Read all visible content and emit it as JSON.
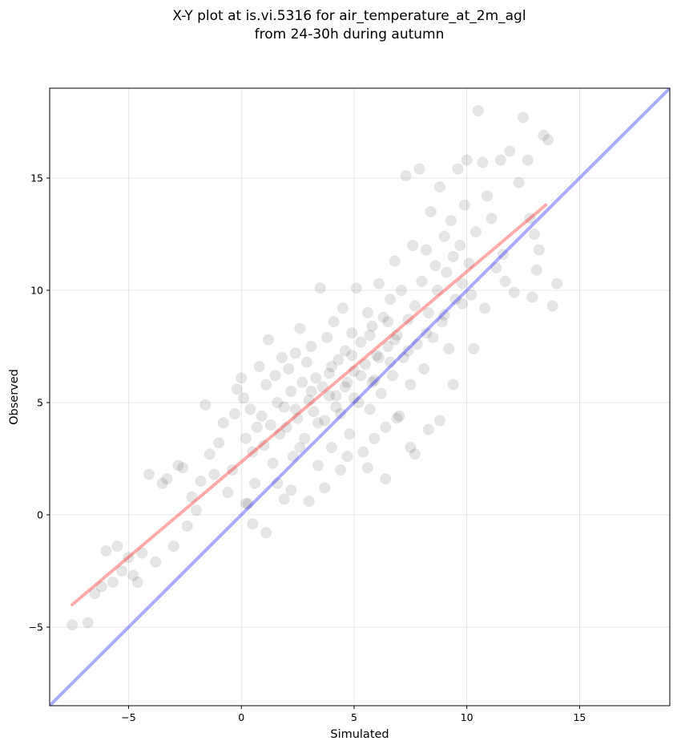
{
  "chart_data": {
    "type": "scatter",
    "title_lines": [
      "X-Y plot at is.vi.5316 for air_temperature_at_2m_agl",
      "from 24-30h during autumn"
    ],
    "xlabel": "Simulated",
    "ylabel": "Observed",
    "xlim": [
      -8.5,
      19
    ],
    "ylim": [
      -8.5,
      19
    ],
    "xticks": [
      -5,
      0,
      5,
      10,
      15
    ],
    "yticks": [
      -5,
      0,
      5,
      10,
      15
    ],
    "xtick_labels": [
      "−5",
      "0",
      "5",
      "10",
      "15"
    ],
    "ytick_labels": [
      "−5",
      "0",
      "5",
      "10",
      "15"
    ],
    "grid": true,
    "point_color": "#000000",
    "point_opacity": 0.1,
    "identity_line": {
      "x": [
        -8.5,
        19
      ],
      "y": [
        -8.5,
        19
      ],
      "color": "#0000ff",
      "opacity": 0.33
    },
    "fit_line": {
      "x": [
        -7.5,
        13.5
      ],
      "y": [
        -4.0,
        13.8
      ],
      "color": "#ff0000",
      "opacity": 0.33
    },
    "points": [
      [
        -7.5,
        -4.9
      ],
      [
        -6.8,
        -4.8
      ],
      [
        -6.5,
        -3.5
      ],
      [
        -6.2,
        -3.2
      ],
      [
        -6.0,
        -1.6
      ],
      [
        -5.7,
        -3.0
      ],
      [
        -5.5,
        -1.4
      ],
      [
        -5.3,
        -2.5
      ],
      [
        -5.0,
        -1.9
      ],
      [
        -4.8,
        -2.7
      ],
      [
        -4.6,
        -3.0
      ],
      [
        -4.4,
        -1.7
      ],
      [
        -4.1,
        1.8
      ],
      [
        -3.8,
        -2.1
      ],
      [
        -3.5,
        1.4
      ],
      [
        -3.3,
        1.6
      ],
      [
        -3.0,
        -1.4
      ],
      [
        -2.8,
        2.2
      ],
      [
        -2.6,
        2.1
      ],
      [
        -2.4,
        -0.5
      ],
      [
        -2.2,
        0.8
      ],
      [
        -2.0,
        0.2
      ],
      [
        -1.8,
        1.5
      ],
      [
        -1.6,
        4.9
      ],
      [
        -1.4,
        2.7
      ],
      [
        -1.2,
        1.8
      ],
      [
        -1.0,
        3.2
      ],
      [
        -0.8,
        4.1
      ],
      [
        -0.6,
        1.0
      ],
      [
        -0.4,
        2.0
      ],
      [
        -0.3,
        4.5
      ],
      [
        -0.2,
        5.6
      ],
      [
        0.0,
        6.1
      ],
      [
        0.1,
        5.2
      ],
      [
        0.2,
        3.4
      ],
      [
        0.3,
        0.5
      ],
      [
        0.4,
        4.7
      ],
      [
        0.5,
        2.8
      ],
      [
        0.6,
        1.4
      ],
      [
        0.7,
        3.9
      ],
      [
        0.8,
        6.6
      ],
      [
        0.9,
        4.4
      ],
      [
        1.0,
        3.1
      ],
      [
        1.1,
        5.8
      ],
      [
        1.2,
        7.8
      ],
      [
        1.3,
        4.0
      ],
      [
        1.4,
        2.3
      ],
      [
        1.5,
        6.2
      ],
      [
        1.6,
        5.0
      ],
      [
        1.7,
        3.6
      ],
      [
        1.8,
        7.0
      ],
      [
        1.9,
        4.8
      ],
      [
        2.0,
        3.9
      ],
      [
        2.1,
        6.5
      ],
      [
        2.2,
        5.5
      ],
      [
        2.3,
        2.6
      ],
      [
        2.4,
        7.2
      ],
      [
        2.5,
        4.3
      ],
      [
        2.6,
        8.3
      ],
      [
        2.7,
        5.9
      ],
      [
        2.8,
        3.4
      ],
      [
        2.9,
        6.8
      ],
      [
        3.0,
        5.1
      ],
      [
        3.1,
        7.5
      ],
      [
        3.2,
        4.6
      ],
      [
        3.3,
        6.1
      ],
      [
        3.4,
        2.2
      ],
      [
        3.5,
        10.1
      ],
      [
        3.6,
        5.7
      ],
      [
        3.7,
        4.2
      ],
      [
        3.8,
        7.9
      ],
      [
        3.9,
        6.3
      ],
      [
        4.0,
        3.0
      ],
      [
        4.1,
        8.6
      ],
      [
        4.2,
        5.3
      ],
      [
        4.3,
        6.9
      ],
      [
        4.4,
        4.5
      ],
      [
        4.5,
        9.2
      ],
      [
        4.6,
        7.3
      ],
      [
        4.7,
        5.9
      ],
      [
        4.8,
        3.6
      ],
      [
        4.9,
        8.1
      ],
      [
        5.0,
        6.4
      ],
      [
        5.1,
        10.1
      ],
      [
        5.2,
        5.0
      ],
      [
        5.3,
        7.7
      ],
      [
        5.4,
        2.8
      ],
      [
        5.5,
        6.7
      ],
      [
        5.6,
        9.0
      ],
      [
        5.7,
        4.7
      ],
      [
        5.8,
        8.4
      ],
      [
        5.9,
        6.0
      ],
      [
        6.0,
        7.1
      ],
      [
        6.1,
        10.3
      ],
      [
        6.2,
        5.4
      ],
      [
        6.3,
        8.8
      ],
      [
        6.4,
        3.9
      ],
      [
        6.5,
        7.5
      ],
      [
        6.6,
        9.6
      ],
      [
        6.7,
        6.2
      ],
      [
        6.8,
        11.3
      ],
      [
        6.9,
        8.0
      ],
      [
        7.0,
        4.4
      ],
      [
        7.1,
        10.0
      ],
      [
        7.2,
        7.0
      ],
      [
        7.3,
        15.1
      ],
      [
        7.4,
        8.7
      ],
      [
        7.5,
        5.8
      ],
      [
        7.6,
        12.0
      ],
      [
        7.7,
        9.3
      ],
      [
        7.8,
        7.6
      ],
      [
        7.9,
        15.4
      ],
      [
        8.0,
        10.4
      ],
      [
        8.1,
        6.5
      ],
      [
        8.2,
        11.8
      ],
      [
        8.3,
        9.0
      ],
      [
        8.4,
        13.5
      ],
      [
        8.5,
        7.9
      ],
      [
        8.6,
        11.1
      ],
      [
        8.7,
        10.0
      ],
      [
        8.8,
        14.6
      ],
      [
        8.9,
        8.6
      ],
      [
        9.0,
        12.4
      ],
      [
        9.1,
        10.8
      ],
      [
        9.2,
        7.4
      ],
      [
        9.3,
        13.1
      ],
      [
        9.4,
        11.5
      ],
      [
        9.5,
        9.6
      ],
      [
        9.6,
        15.4
      ],
      [
        9.7,
        12.0
      ],
      [
        9.8,
        10.3
      ],
      [
        9.9,
        13.8
      ],
      [
        10.0,
        15.8
      ],
      [
        10.1,
        11.2
      ],
      [
        10.2,
        9.8
      ],
      [
        10.3,
        7.4
      ],
      [
        10.4,
        12.6
      ],
      [
        10.5,
        18.0
      ],
      [
        10.7,
        15.7
      ],
      [
        10.9,
        14.2
      ],
      [
        11.1,
        13.2
      ],
      [
        11.3,
        11.0
      ],
      [
        11.5,
        15.8
      ],
      [
        11.7,
        10.4
      ],
      [
        11.9,
        16.2
      ],
      [
        12.1,
        9.9
      ],
      [
        12.3,
        14.8
      ],
      [
        12.5,
        17.7
      ],
      [
        12.7,
        15.8
      ],
      [
        12.9,
        9.7
      ],
      [
        13.0,
        12.5
      ],
      [
        13.2,
        11.8
      ],
      [
        13.4,
        16.9
      ],
      [
        13.6,
        16.7
      ],
      [
        13.8,
        9.3
      ],
      [
        14.0,
        10.3
      ],
      [
        13.1,
        10.9
      ],
      [
        12.8,
        13.2
      ],
      [
        11.6,
        11.6
      ],
      [
        10.8,
        9.2
      ],
      [
        2.2,
        1.1
      ],
      [
        1.9,
        0.7
      ],
      [
        3.0,
        0.6
      ],
      [
        3.7,
        1.2
      ],
      [
        4.4,
        2.0
      ],
      [
        5.6,
        2.1
      ],
      [
        6.4,
        1.6
      ],
      [
        7.5,
        3.0
      ],
      [
        8.3,
        3.8
      ],
      [
        8.8,
        4.2
      ],
      [
        9.4,
        5.8
      ],
      [
        1.1,
        -0.8
      ],
      [
        0.5,
        -0.4
      ],
      [
        0.2,
        0.5
      ],
      [
        1.6,
        1.4
      ],
      [
        4.7,
        2.6
      ],
      [
        5.9,
        3.4
      ],
      [
        6.9,
        4.3
      ],
      [
        7.7,
        2.7
      ],
      [
        2.6,
        3.0
      ],
      [
        3.4,
        4.1
      ],
      [
        4.2,
        4.8
      ],
      [
        5.0,
        5.2
      ],
      [
        5.8,
        5.9
      ],
      [
        6.6,
        6.8
      ],
      [
        7.4,
        7.3
      ],
      [
        8.2,
        8.1
      ],
      [
        9.0,
        8.9
      ],
      [
        9.8,
        9.4
      ],
      [
        3.9,
        5.3
      ],
      [
        4.6,
        5.7
      ],
      [
        5.3,
        6.2
      ],
      [
        6.1,
        7.0
      ],
      [
        6.8,
        7.8
      ],
      [
        2.4,
        4.7
      ],
      [
        3.1,
        5.5
      ],
      [
        4.0,
        6.6
      ],
      [
        4.9,
        7.1
      ],
      [
        5.7,
        8.0
      ],
      [
        6.5,
        8.6
      ]
    ]
  }
}
